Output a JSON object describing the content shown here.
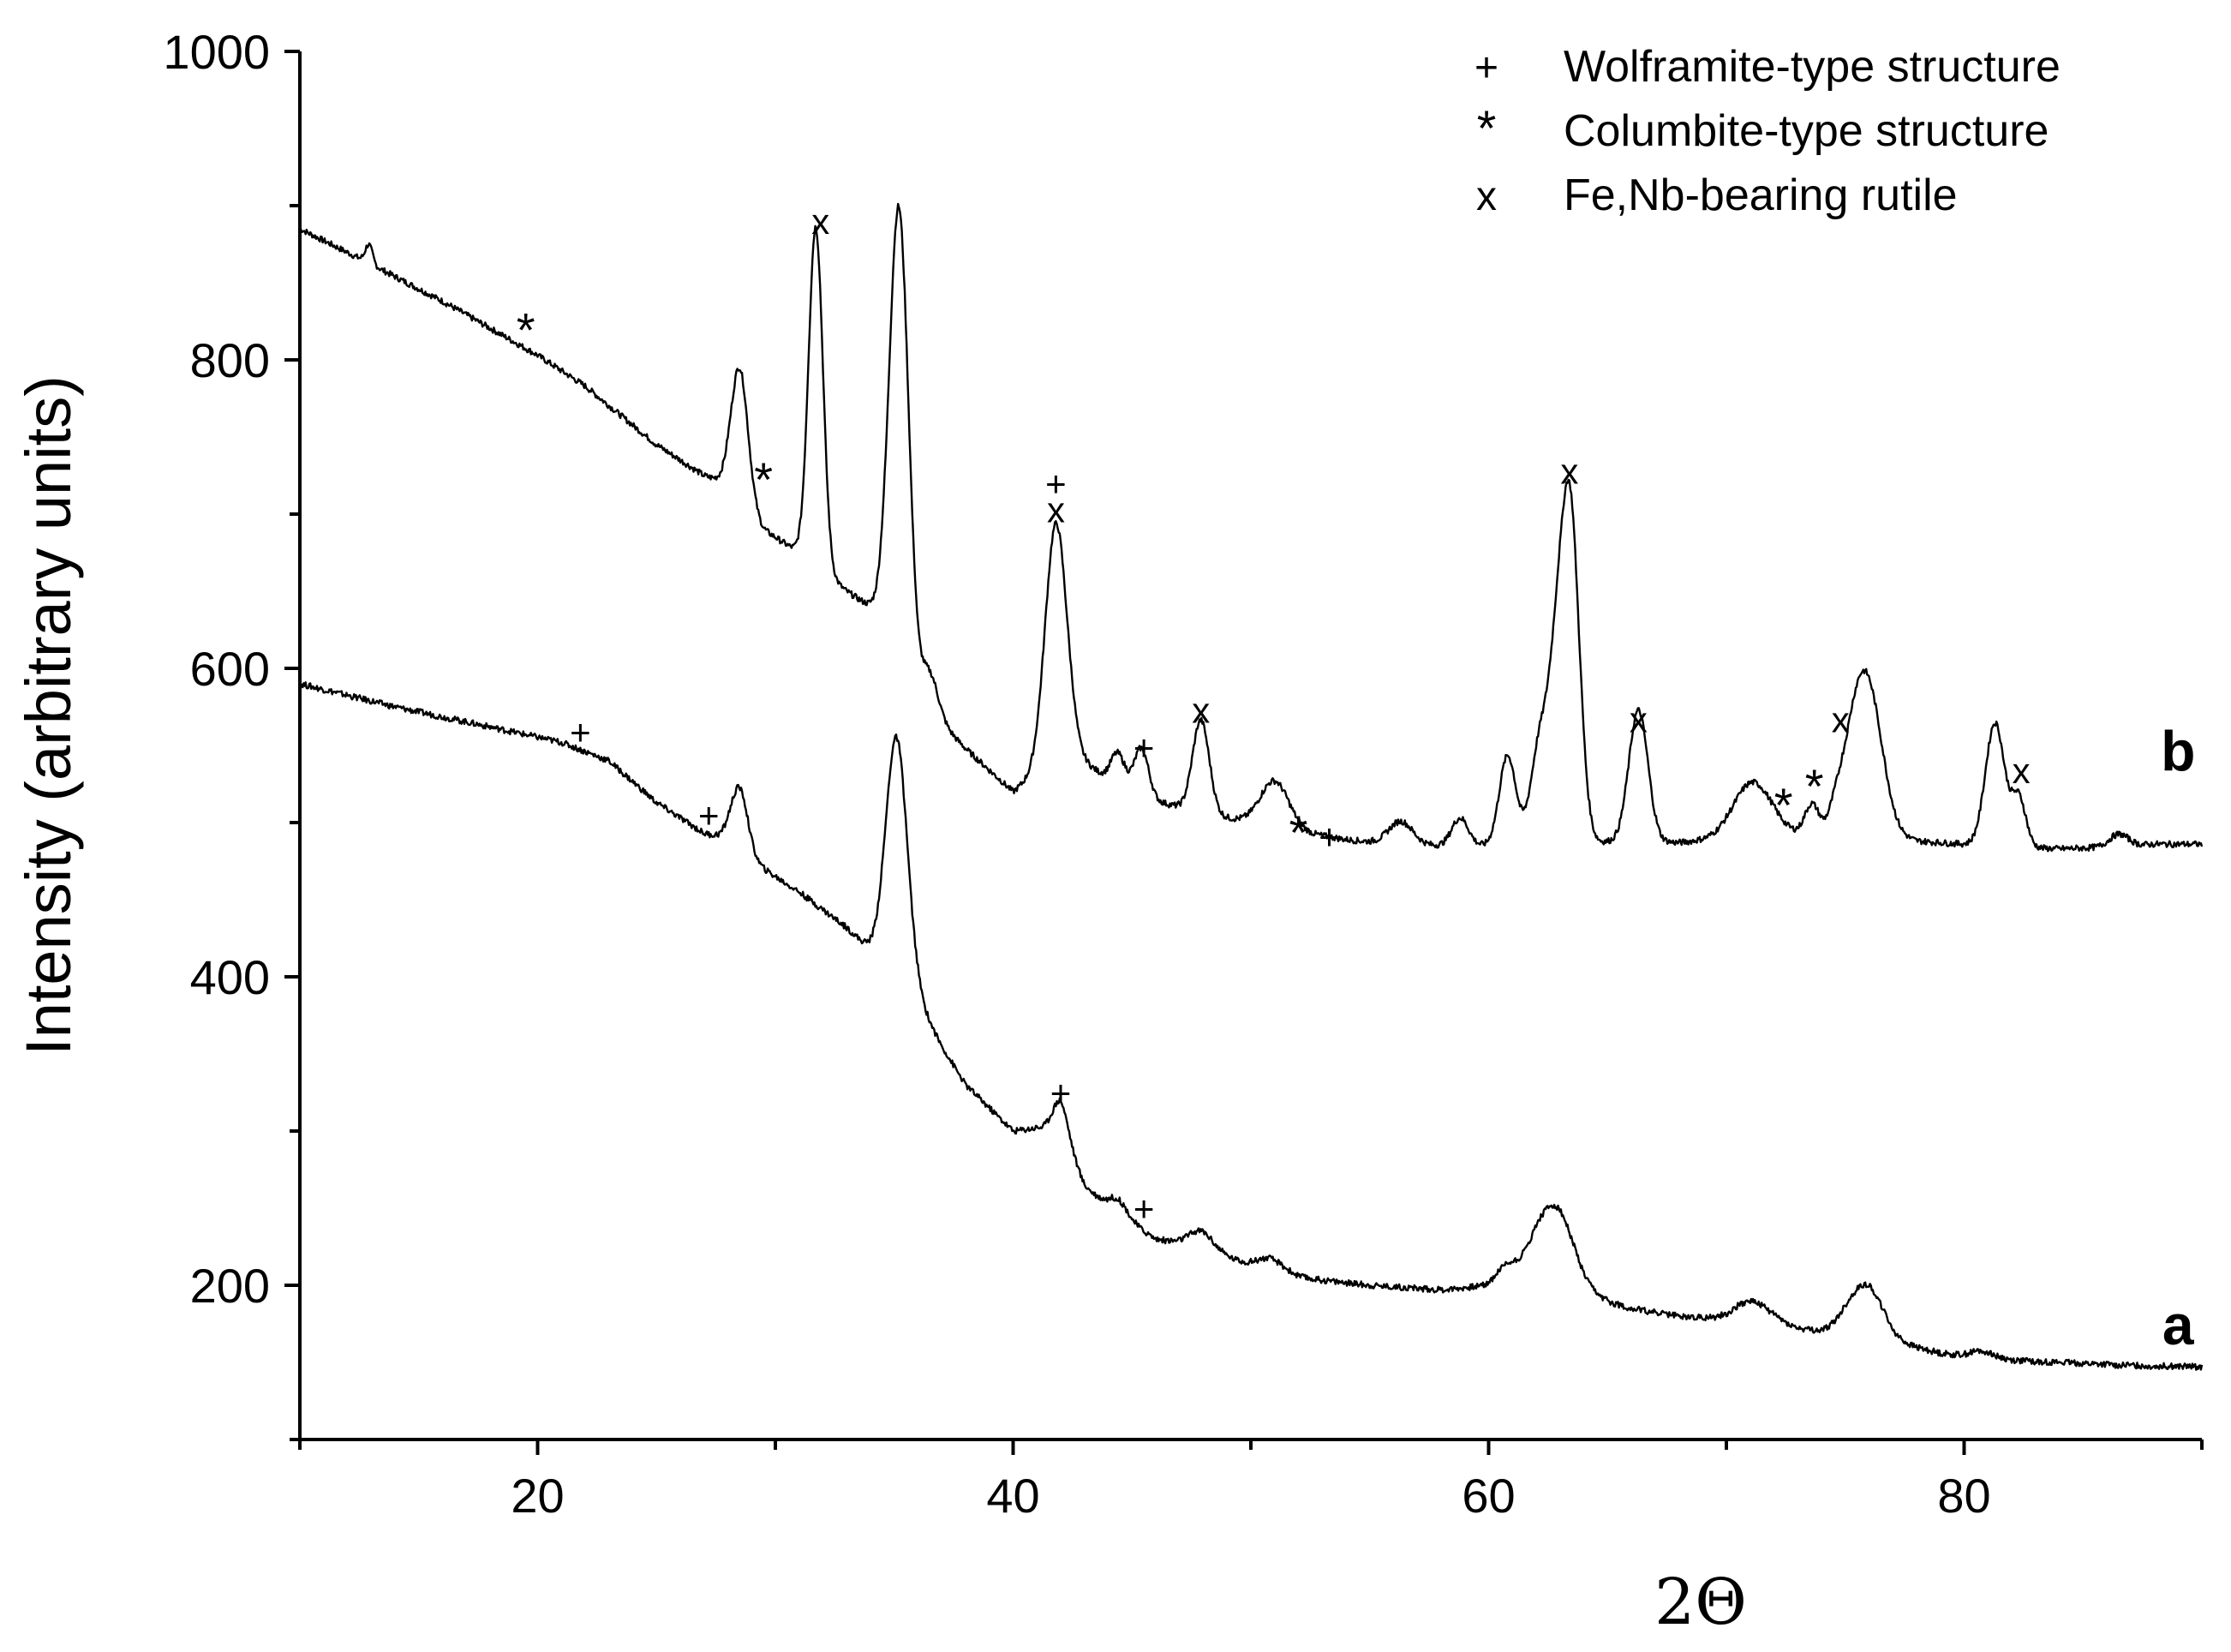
{
  "chart_data": {
    "type": "line",
    "xlabel": "2Θ",
    "ylabel": "Intensity (arbitrary units)",
    "xlim": [
      10,
      90
    ],
    "ylim": [
      100,
      1000
    ],
    "x_ticks": [
      20,
      40,
      60,
      80
    ],
    "y_ticks": [
      200,
      400,
      600,
      800,
      1000
    ],
    "grid": false,
    "legend": {
      "position": "top-right",
      "entries": [
        {
          "symbol": "+",
          "label": "Wolframite-type structure"
        },
        {
          "symbol": "*",
          "label": "Columbite-type structure"
        },
        {
          "symbol": "x",
          "label": "Fe,Nb-bearing rutile"
        }
      ]
    },
    "series": [
      {
        "name": "b",
        "baseline": [
          [
            10,
            885
          ],
          [
            13,
            862
          ],
          [
            16,
            838
          ],
          [
            20,
            803
          ],
          [
            22,
            783
          ],
          [
            25,
            745
          ],
          [
            27,
            725
          ],
          [
            28,
            720
          ],
          [
            29.5,
            690
          ],
          [
            31,
            675
          ],
          [
            33,
            650
          ],
          [
            34.5,
            635
          ],
          [
            36,
            580
          ],
          [
            38,
            548
          ],
          [
            40,
            520
          ],
          [
            41,
            532
          ],
          [
            42.5,
            545
          ],
          [
            44,
            528
          ],
          [
            46,
            514
          ],
          [
            48,
            506
          ],
          [
            50,
            500
          ],
          [
            52,
            494
          ],
          [
            54,
            489
          ],
          [
            56,
            486
          ],
          [
            58,
            485
          ],
          [
            60,
            485
          ],
          [
            62,
            486
          ],
          [
            64,
            487
          ],
          [
            66,
            488
          ],
          [
            68,
            487
          ],
          [
            70,
            490
          ],
          [
            72,
            492
          ],
          [
            74,
            492
          ],
          [
            76,
            494
          ],
          [
            78,
            488
          ],
          [
            80,
            486
          ],
          [
            82,
            484
          ],
          [
            84,
            483
          ],
          [
            86,
            484
          ],
          [
            88,
            486
          ],
          [
            90,
            486
          ]
        ],
        "peaks": [
          [
            12.9,
            12,
            0.15
          ],
          [
            28.5,
            85,
            0.35
          ],
          [
            31.7,
            220,
            0.3
          ],
          [
            35.2,
            290,
            0.4
          ],
          [
            36.5,
            25,
            0.35
          ],
          [
            41.8,
            155,
            0.45
          ],
          [
            44.4,
            20,
            0.3
          ],
          [
            45.4,
            30,
            0.3
          ],
          [
            47.9,
            60,
            0.35
          ],
          [
            51,
            30,
            0.6
          ],
          [
            56.3,
            15,
            0.5
          ],
          [
            58.8,
            18,
            0.35
          ],
          [
            60.8,
            58,
            0.35
          ],
          [
            62.2,
            70,
            0.4
          ],
          [
            62.8,
            60,
            0.3
          ],
          [
            63.4,
            225,
            0.4
          ],
          [
            66.3,
            85,
            0.4
          ],
          [
            71.1,
            35,
            0.8
          ],
          [
            73.6,
            20,
            0.3
          ],
          [
            74.6,
            12,
            0.3
          ],
          [
            75.3,
            40,
            0.5
          ],
          [
            76,
            85,
            0.6
          ],
          [
            81.3,
            80,
            0.4
          ],
          [
            82.3,
            32,
            0.3
          ],
          [
            86.5,
            8,
            0.4
          ]
        ]
      },
      {
        "name": "a",
        "baseline": [
          [
            10,
            590
          ],
          [
            14,
            575
          ],
          [
            18,
            562
          ],
          [
            21,
            552
          ],
          [
            23,
            540
          ],
          [
            25,
            513
          ],
          [
            27,
            493
          ],
          [
            28,
            490
          ],
          [
            29,
            475
          ],
          [
            31,
            455
          ],
          [
            33,
            432
          ],
          [
            34.5,
            410
          ],
          [
            36,
            385
          ],
          [
            37,
            355
          ],
          [
            38,
            330
          ],
          [
            40,
            300
          ],
          [
            41,
            302
          ],
          [
            42,
            298
          ],
          [
            43,
            265
          ],
          [
            44,
            250
          ],
          [
            45,
            240
          ],
          [
            46,
            230
          ],
          [
            48,
            225
          ],
          [
            50,
            212
          ],
          [
            52,
            205
          ],
          [
            55,
            200
          ],
          [
            58,
            197
          ],
          [
            60,
            200
          ],
          [
            61,
            206
          ],
          [
            62,
            212
          ],
          [
            63,
            205
          ],
          [
            64,
            193
          ],
          [
            66,
            185
          ],
          [
            68,
            180
          ],
          [
            70,
            178
          ],
          [
            71,
            180
          ],
          [
            72,
            178
          ],
          [
            73,
            172
          ],
          [
            74,
            170
          ],
          [
            75,
            174
          ],
          [
            76,
            170
          ],
          [
            77,
            163
          ],
          [
            79,
            156
          ],
          [
            81,
            152
          ],
          [
            84,
            150
          ],
          [
            87,
            148
          ],
          [
            90,
            147
          ]
        ],
        "peaks": [
          [
            28.5,
            40,
            0.35
          ],
          [
            35.1,
            155,
            0.45
          ],
          [
            42,
            22,
            0.35
          ],
          [
            44.4,
            10,
            0.4
          ],
          [
            47.9,
            10,
            0.5
          ],
          [
            50.8,
            8,
            0.6
          ],
          [
            60.7,
            8,
            0.4
          ],
          [
            62.8,
            45,
            0.8
          ],
          [
            71,
            10,
            0.7
          ],
          [
            75.9,
            30,
            0.7
          ],
          [
            80.8,
            5,
            0.5
          ]
        ]
      }
    ],
    "curve_labels": [
      {
        "text": "b",
        "x": 89,
        "y": 547
      },
      {
        "text": "a",
        "x": 89,
        "y": 175
      }
    ],
    "annotations": [
      {
        "symbol": "*",
        "x": 19.5,
        "y": 817
      },
      {
        "symbol": "*",
        "x": 29.5,
        "y": 720
      },
      {
        "symbol": "x",
        "x": 31.9,
        "y": 890
      },
      {
        "symbol": "+",
        "x": 41.8,
        "y": 720
      },
      {
        "symbol": "x",
        "x": 41.8,
        "y": 703
      },
      {
        "symbol": "+",
        "x": 45.5,
        "y": 549
      },
      {
        "symbol": "x",
        "x": 47.9,
        "y": 573
      },
      {
        "symbol": "*",
        "x": 52,
        "y": 491
      },
      {
        "symbol": "+",
        "x": 53.3,
        "y": 491
      },
      {
        "symbol": "x",
        "x": 63.4,
        "y": 728
      },
      {
        "symbol": "x",
        "x": 66.3,
        "y": 567
      },
      {
        "symbol": "*",
        "x": 72.4,
        "y": 509
      },
      {
        "symbol": "*",
        "x": 73.7,
        "y": 521
      },
      {
        "symbol": "x",
        "x": 74.8,
        "y": 567
      },
      {
        "symbol": "x",
        "x": 82.4,
        "y": 534
      },
      {
        "symbol": "+",
        "x": 21.8,
        "y": 559
      },
      {
        "symbol": "+",
        "x": 27.2,
        "y": 505
      },
      {
        "symbol": "+",
        "x": 42,
        "y": 325
      },
      {
        "symbol": "+",
        "x": 45.5,
        "y": 250
      }
    ]
  }
}
